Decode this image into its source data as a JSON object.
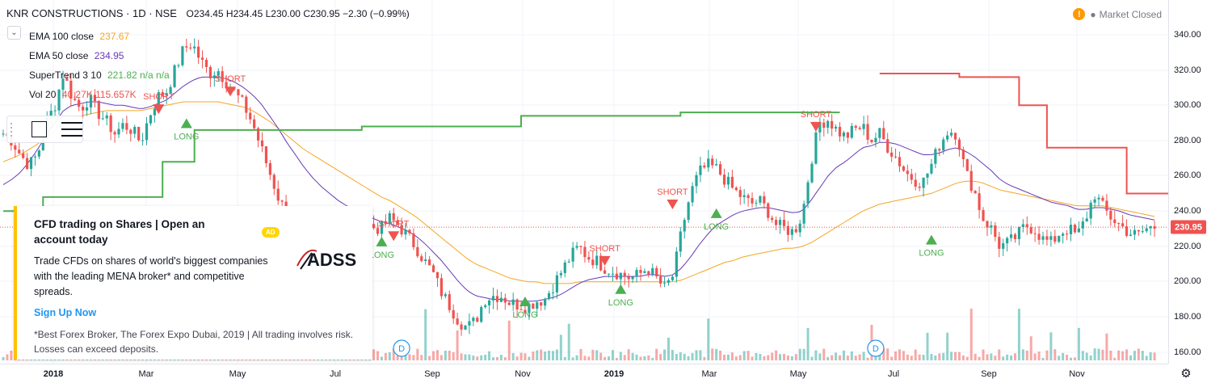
{
  "header": {
    "symbol": "KNR CONSTRUCTIONS · 1D · NSE",
    "ohlc": "O234.45 H234.45 L230.00 C230.95 −2.30 (−0.99%)"
  },
  "indicators": [
    {
      "label": "EMA 100 close",
      "value": "237.67",
      "color": "#f5a623"
    },
    {
      "label": "EMA 50 close",
      "value": "234.95",
      "color": "#673ab7"
    },
    {
      "label": "SuperTrend 3 10",
      "value": "221.82  n/a  n/a",
      "color": "#4caf50"
    },
    {
      "label": "Vol 20",
      "value": "40.27K  115.657K",
      "color": "#ef5350"
    }
  ],
  "market_status": {
    "alert_icon": "!",
    "text": "Market Closed"
  },
  "ad": {
    "badge": "AD",
    "title": "CFD trading on Shares | Open an account today",
    "logo_text": "ADSS",
    "body": "Trade CFDs on shares of world's biggest companies with the leading MENA broker* and competitive spreads.",
    "link": "Sign Up Now",
    "disclaimer": "*Best Forex Broker, The Forex Expo Dubai, 2019 | All trading involves risk. Losses can exceed deposits."
  },
  "price_axis": {
    "ticks": [
      "340.00",
      "320.00",
      "300.00",
      "280.00",
      "260.00",
      "240.00",
      "220.00",
      "200.00",
      "180.00",
      "160.00"
    ],
    "last_price": "230.95",
    "last_price_color": "#ef5350"
  },
  "time_axis": {
    "ticks": [
      {
        "label": "2018",
        "bold": true
      },
      {
        "label": "Mar",
        "bold": false
      },
      {
        "label": "May",
        "bold": false
      },
      {
        "label": "Jul",
        "bold": false
      },
      {
        "label": "Sep",
        "bold": false
      },
      {
        "label": "Nov",
        "bold": false
      },
      {
        "label": "2019",
        "bold": true
      },
      {
        "label": "Mar",
        "bold": false
      },
      {
        "label": "May",
        "bold": false
      },
      {
        "label": "Jul",
        "bold": false
      },
      {
        "label": "Sep",
        "bold": false
      },
      {
        "label": "Nov",
        "bold": false
      }
    ]
  },
  "chart_data": {
    "type": "candlestick",
    "ylim": [
      155,
      348
    ],
    "up_color": "#26a69a",
    "down_color": "#ef5350",
    "closes": [
      284,
      280,
      272,
      266,
      272,
      290,
      300,
      318,
      305,
      298,
      304,
      296,
      291,
      284,
      289,
      286,
      279,
      294,
      305,
      308,
      320,
      332,
      335,
      325,
      318,
      320,
      313,
      307,
      300,
      290,
      276,
      262,
      248,
      238,
      236,
      232,
      228,
      232,
      230,
      235,
      233,
      232,
      234,
      231,
      230,
      236,
      232,
      226,
      220,
      212,
      205,
      194,
      186,
      178,
      174,
      178,
      190,
      192,
      192,
      188,
      187,
      186,
      189,
      190,
      198,
      206,
      214,
      220,
      214,
      212,
      208,
      206,
      204,
      202,
      204,
      208,
      202,
      196,
      204,
      230,
      250,
      262,
      266,
      264,
      258,
      252,
      248,
      244,
      246,
      240,
      232,
      230,
      228,
      238,
      268,
      290,
      292,
      286,
      282,
      286,
      288,
      280,
      284,
      276,
      270,
      262,
      258,
      256,
      266,
      278,
      286,
      284,
      262,
      252,
      236,
      230,
      220,
      222,
      226,
      232,
      230,
      224,
      222,
      228,
      230,
      226,
      236,
      250,
      242,
      236,
      232,
      228,
      226,
      230,
      231
    ],
    "ema100": [
      268,
      270,
      272,
      275,
      278,
      282,
      286,
      290,
      292,
      294,
      295,
      296,
      297,
      297,
      297,
      297,
      297,
      298,
      299,
      300,
      301,
      302,
      302,
      302,
      302,
      302,
      301,
      300,
      299,
      297,
      294,
      291,
      287,
      283,
      279,
      275,
      272,
      269,
      266,
      263,
      260,
      257,
      254,
      251,
      248,
      246,
      243,
      240,
      237,
      233,
      229,
      225,
      221,
      217,
      213,
      210,
      208,
      206,
      204,
      202,
      201,
      200,
      200,
      199,
      199,
      199,
      199,
      200,
      200,
      200,
      200,
      200,
      200,
      200,
      200,
      200,
      200,
      200,
      200,
      201,
      203,
      205,
      207,
      209,
      211,
      212,
      214,
      215,
      216,
      217,
      218,
      219,
      219,
      220,
      222,
      225,
      228,
      231,
      234,
      237,
      240,
      242,
      244,
      245,
      246,
      247,
      248,
      249,
      250,
      252,
      254,
      256,
      257,
      257,
      256,
      254,
      252,
      251,
      250,
      249,
      248,
      247,
      246,
      245,
      244,
      243,
      243,
      243,
      243,
      242,
      241,
      240,
      239,
      238,
      237
    ],
    "ema50": [
      255,
      258,
      262,
      268,
      275,
      283,
      290,
      297,
      300,
      301,
      302,
      302,
      301,
      300,
      300,
      299,
      298,
      299,
      301,
      303,
      307,
      311,
      314,
      316,
      316,
      316,
      315,
      313,
      310,
      306,
      301,
      294,
      287,
      279,
      272,
      265,
      259,
      254,
      250,
      246,
      243,
      240,
      238,
      236,
      234,
      233,
      231,
      229,
      226,
      222,
      217,
      212,
      206,
      200,
      195,
      192,
      191,
      190,
      190,
      189,
      189,
      189,
      189,
      190,
      191,
      193,
      196,
      199,
      201,
      202,
      203,
      203,
      203,
      203,
      203,
      204,
      204,
      203,
      204,
      208,
      214,
      221,
      227,
      232,
      235,
      238,
      240,
      241,
      242,
      242,
      241,
      240,
      239,
      240,
      246,
      253,
      260,
      265,
      268,
      272,
      276,
      277,
      279,
      279,
      278,
      276,
      274,
      272,
      272,
      273,
      275,
      276,
      274,
      271,
      267,
      263,
      258,
      255,
      253,
      251,
      249,
      247,
      245,
      244,
      243,
      241,
      241,
      242,
      242,
      241,
      240,
      238,
      237,
      236,
      235
    ],
    "supertrend": [
      {
        "color": "#4caf50",
        "points": [
          [
            0,
            240
          ],
          [
            10,
            240
          ],
          [
            10,
            248
          ],
          [
            40,
            248
          ],
          [
            40,
            268
          ],
          [
            48,
            268
          ],
          [
            48,
            286
          ],
          [
            90,
            286
          ],
          [
            90,
            288
          ],
          [
            130,
            288
          ],
          [
            130,
            294
          ],
          [
            170,
            294
          ],
          [
            170,
            296
          ],
          [
            210,
            296
          ]
        ]
      },
      {
        "color": "#ef5350",
        "points": [
          [
            220,
            318
          ],
          [
            240,
            318
          ],
          [
            240,
            316
          ],
          [
            255,
            316
          ],
          [
            255,
            300
          ],
          [
            262,
            300
          ],
          [
            262,
            276
          ],
          [
            282,
            276
          ],
          [
            282,
            250
          ],
          [
            305,
            250
          ],
          [
            305,
            240
          ],
          [
            340,
            240
          ]
        ]
      },
      {
        "color": "#4caf50",
        "points": [
          [
            350,
            240
          ],
          [
            380,
            240
          ],
          [
            380,
            230
          ],
          [
            405,
            230
          ]
        ]
      },
      {
        "color": "#ef5350",
        "points": [
          [
            405,
            236
          ],
          [
            420,
            236
          ],
          [
            420,
            226
          ],
          [
            440,
            226
          ],
          [
            440,
            212
          ],
          [
            460,
            212
          ],
          [
            460,
            202
          ],
          [
            520,
            202
          ],
          [
            520,
            201
          ],
          [
            560,
            201
          ]
        ]
      },
      {
        "color": "#4caf50",
        "points": [
          [
            560,
            190
          ],
          [
            620,
            190
          ],
          [
            620,
            196
          ],
          [
            665,
            196
          ]
        ]
      },
      {
        "color": "#ef5350",
        "points": [
          [
            605,
            216
          ],
          [
            615,
            216
          ]
        ]
      },
      {
        "color": "#4caf50",
        "points": [
          [
            665,
            196
          ],
          [
            680,
            196
          ],
          [
            680,
            220
          ],
          [
            690,
            220
          ],
          [
            690,
            238
          ],
          [
            740,
            238
          ],
          [
            740,
            238
          ],
          [
            780,
            238
          ],
          [
            780,
            246
          ],
          [
            800,
            246
          ],
          [
            800,
            252
          ],
          [
            820,
            252
          ],
          [
            820,
            258
          ],
          [
            870,
            258
          ],
          [
            870,
            261
          ],
          [
            900,
            261
          ]
        ]
      },
      {
        "color": "#ef5350",
        "points": [
          [
            725,
            264
          ],
          [
            760,
            264
          ],
          [
            760,
            254
          ],
          [
            790,
            254
          ]
        ]
      },
      {
        "color": "#ef5350",
        "points": [
          [
            900,
            290
          ],
          [
            920,
            290
          ],
          [
            920,
            266
          ],
          [
            930,
            266
          ],
          [
            930,
            250
          ],
          [
            990,
            250
          ],
          [
            990,
            242
          ],
          [
            1010,
            242
          ],
          [
            1010,
            238
          ]
        ]
      },
      {
        "color": "#4caf50",
        "points": [
          [
            1010,
            221
          ],
          [
            1080,
            221
          ]
        ]
      }
    ],
    "signals": [
      {
        "type": "SHORT",
        "i": 39,
        "price": 296
      },
      {
        "type": "LONG",
        "i": 46,
        "price": 288
      },
      {
        "type": "SHORT",
        "i": 57,
        "price": 306
      },
      {
        "type": "SHORT",
        "i": 98,
        "price": 224
      },
      {
        "type": "LONG",
        "i": 95,
        "price": 221
      },
      {
        "type": "LONG",
        "i": 131,
        "price": 187
      },
      {
        "type": "SHORT",
        "i": 151,
        "price": 210
      },
      {
        "type": "LONG",
        "i": 155,
        "price": 194
      },
      {
        "type": "SHORT",
        "i": 168,
        "price": 242
      },
      {
        "type": "LONG",
        "i": 179,
        "price": 237
      },
      {
        "type": "SHORT",
        "i": 204,
        "price": 286
      },
      {
        "type": "LONG",
        "i": 233,
        "price": 222
      }
    ],
    "dividends": [
      {
        "i": 100,
        "label": "D"
      },
      {
        "i": 219,
        "label": "D"
      }
    ],
    "last_price_line": 230.95,
    "xlabel": "",
    "ylabel": ""
  }
}
